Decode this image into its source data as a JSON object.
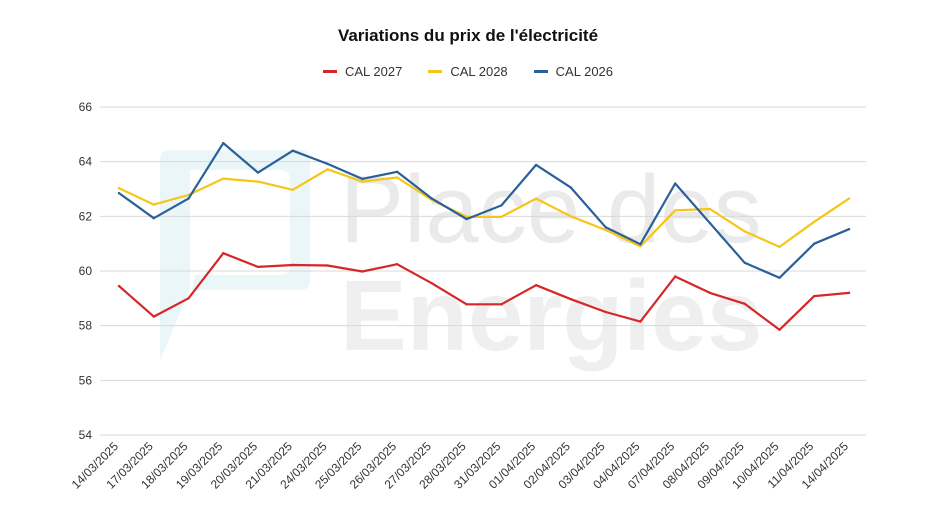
{
  "chart_data": {
    "type": "line",
    "title": "Variations du prix de l'électricité",
    "xlabel": "",
    "ylabel": "",
    "categories": [
      "14/03/2025",
      "17/03/2025",
      "18/03/2025",
      "19/03/2025",
      "20/03/2025",
      "21/03/2025",
      "24/03/2025",
      "25/03/2025",
      "26/03/2025",
      "27/03/2025",
      "28/03/2025",
      "31/03/2025",
      "01/04/2025",
      "02/04/2025",
      "03/04/2025",
      "04/04/2025",
      "07/04/2025",
      "08/04/2025",
      "09/04/2025",
      "10/04/2025",
      "11/04/2025",
      "14/04/2025"
    ],
    "ylim": [
      54,
      66
    ],
    "yticks": [
      54,
      56,
      58,
      60,
      62,
      64,
      66
    ],
    "grid": true,
    "legend_position": "top",
    "series": [
      {
        "name": "CAL 2027",
        "color": "#d62728",
        "values": [
          59.45,
          58.33,
          59.0,
          60.65,
          60.15,
          60.22,
          60.2,
          59.98,
          60.25,
          59.55,
          58.78,
          58.78,
          59.48,
          58.97,
          58.5,
          58.15,
          59.8,
          59.2,
          58.8,
          57.85,
          59.08,
          59.2
        ]
      },
      {
        "name": "CAL 2028",
        "color": "#f5c518",
        "values": [
          63.03,
          62.43,
          62.78,
          63.38,
          63.27,
          62.97,
          63.72,
          63.27,
          63.42,
          62.6,
          61.98,
          61.98,
          62.65,
          62.0,
          61.5,
          60.9,
          62.22,
          62.27,
          61.45,
          60.88,
          61.8,
          62.65
        ]
      },
      {
        "name": "CAL 2026",
        "color": "#2a6099",
        "values": [
          62.85,
          61.93,
          62.65,
          64.68,
          63.6,
          64.4,
          63.92,
          63.37,
          63.63,
          62.65,
          61.9,
          62.4,
          63.88,
          63.05,
          61.6,
          60.98,
          63.2,
          61.75,
          60.3,
          59.75,
          61.0,
          61.53
        ]
      }
    ],
    "watermark_text": [
      "Place des",
      "Energies"
    ]
  }
}
